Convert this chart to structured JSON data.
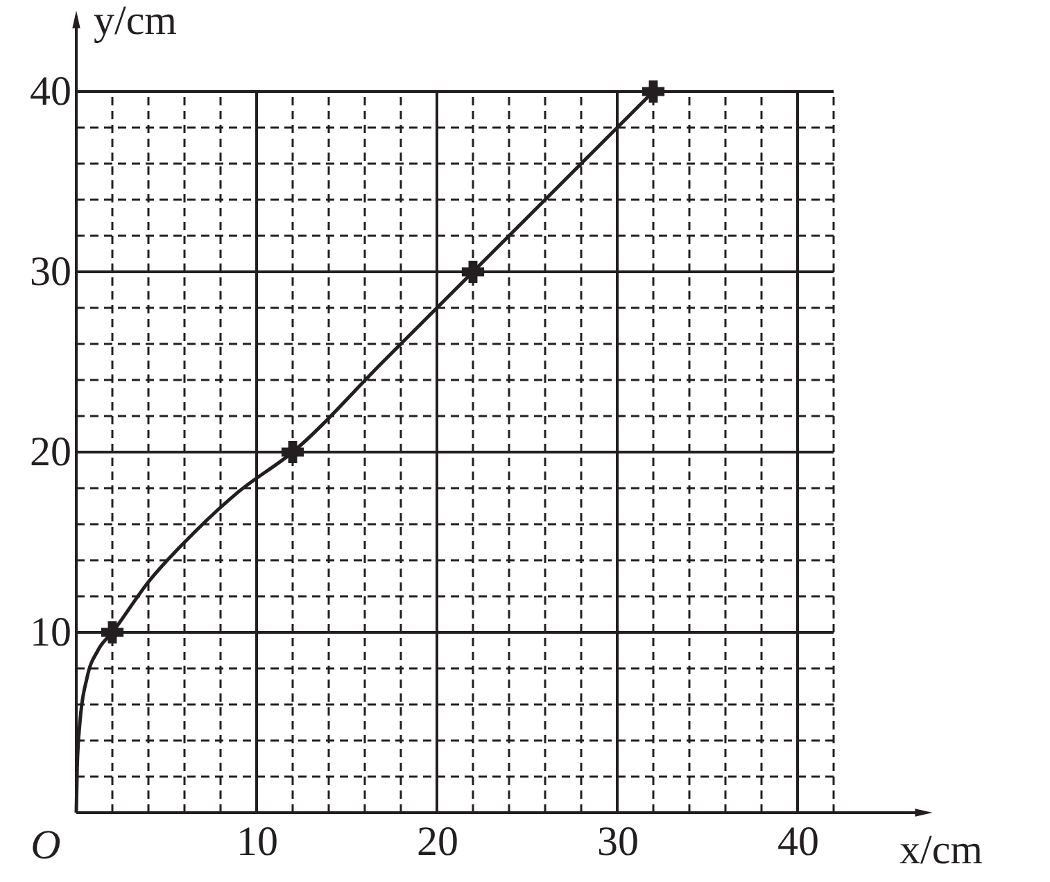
{
  "chart_data": {
    "type": "line",
    "xlabel": "x/cm",
    "ylabel": "y/cm",
    "xlim": [
      0,
      47
    ],
    "ylim": [
      0,
      44
    ],
    "xticks": [
      {
        "value": 2,
        "label": null
      },
      {
        "value": 4,
        "label": null
      },
      {
        "value": 6,
        "label": null
      },
      {
        "value": 8,
        "label": null
      },
      10,
      {
        "value": 12,
        "label": null
      },
      {
        "value": 14,
        "label": null
      },
      {
        "value": 16,
        "label": null
      },
      {
        "value": 18,
        "label": null
      },
      20,
      {
        "value": 22,
        "label": null
      },
      {
        "value": 24,
        "label": null
      },
      {
        "value": 26,
        "label": null
      },
      {
        "value": 28,
        "label": null
      },
      30,
      {
        "value": 32,
        "label": null
      },
      {
        "value": 34,
        "label": null
      },
      {
        "value": 36,
        "label": null
      },
      {
        "value": 38,
        "label": null
      },
      40,
      {
        "value": 42,
        "label": null
      }
    ],
    "yticks": [
      {
        "value": 2,
        "label": null
      },
      {
        "value": 4,
        "label": null
      },
      {
        "value": 6,
        "label": null
      },
      {
        "value": 8,
        "label": null
      },
      10,
      {
        "value": 12,
        "label": null
      },
      {
        "value": 14,
        "label": null
      },
      {
        "value": 16,
        "label": null
      },
      {
        "value": 18,
        "label": null
      },
      20,
      {
        "value": 22,
        "label": null
      },
      {
        "value": 24,
        "label": null
      },
      {
        "value": 26,
        "label": null
      },
      {
        "value": 28,
        "label": null
      },
      30,
      {
        "value": 32,
        "label": null
      },
      {
        "value": 34,
        "label": null
      },
      {
        "value": 36,
        "label": null
      },
      {
        "value": 38,
        "label": null
      },
      40
    ],
    "grid": true,
    "line_style": "solid",
    "annotations": [
      {
        "text": "O",
        "x": 0,
        "y": 0
      }
    ],
    "series": [
      {
        "marker": "none",
        "color": "#231f20",
        "x": [
          0,
          0.05,
          0.2,
          0.6,
          1.2,
          2,
          4,
          6.5,
          9,
          12,
          17,
          22,
          27,
          32
        ],
        "values": [
          0,
          2.5,
          5,
          7.5,
          9,
          10,
          12.8,
          15.5,
          17.8,
          20,
          25,
          30,
          35,
          40
        ]
      },
      {
        "type": "scatter",
        "marker": "cross",
        "color": "#231f20",
        "x": [
          2,
          12,
          22,
          32
        ],
        "values": [
          10,
          20,
          30,
          40
        ]
      }
    ]
  }
}
